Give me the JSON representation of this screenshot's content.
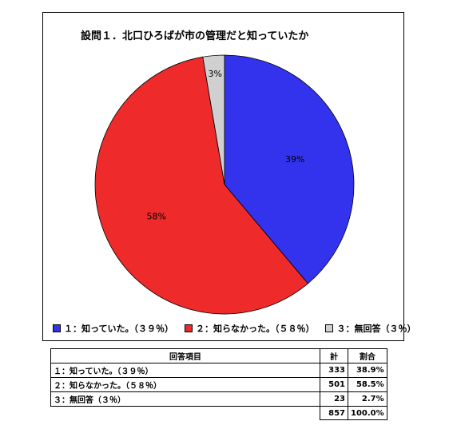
{
  "chart_data": {
    "type": "pie",
    "title": "設問１．北口ひろばが市の管理だと知っていたか",
    "categories": [
      "１：知っていた。（３９％）",
      "２：知らなかった。（５８％）",
      "３：無回答（３％）"
    ],
    "values": [
      333,
      501,
      23
    ],
    "slice_labels": [
      "39%",
      "58%",
      "3%"
    ],
    "colors": [
      "#3333ee",
      "#ee2a2a",
      "#d0d0d0"
    ],
    "legend": {
      "placement": "bottom",
      "entries": [
        "１：知っていた。（３９％）",
        "２：知らなかった。（５８％）",
        "３：無回答（３％）"
      ]
    }
  },
  "table": {
    "headers": [
      "回答項目",
      "計",
      "割合"
    ],
    "rows": [
      {
        "item": "１：知っていた。（３９％）",
        "count": "333",
        "pct": "38.9%"
      },
      {
        "item": "２：知らなかった。（５８％）",
        "count": "501",
        "pct": "58.5%"
      },
      {
        "item": "３：無回答（３％）",
        "count": "23",
        "pct": "2.7%"
      }
    ],
    "total_count": "857",
    "total_pct": "100.0%"
  }
}
